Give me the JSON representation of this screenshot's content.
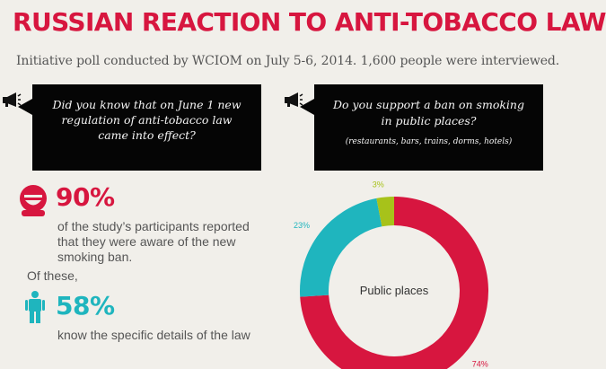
{
  "header": {
    "title": "RUSSIAN REACTION TO ANTI-TOBACCO LAW",
    "subtitle": "Initiative poll conducted by WCIOM on July 5-6, 2014. 1,600 people were interviewed."
  },
  "left_panel": {
    "question": "Did you know that on June 1 new regulation of anti-tobacco law came into effect?",
    "stat1": {
      "value": "90%",
      "text": "of the study’s participants reported that they were aware of the new smoking ban."
    },
    "of_these": "Of these,",
    "stat2": {
      "value": "58%",
      "text": "know the specific details of the law"
    }
  },
  "right_panel": {
    "question": "Do you support a ban on smoking in public places?",
    "note": "(restaurants, bars, trains, dorms, hotels)"
  },
  "colors": {
    "accent_red": "#d7163f",
    "accent_teal": "#1fb5be",
    "accent_green": "#a7c21a",
    "background": "#f1efea",
    "box": "#050505"
  },
  "icons": [
    "megaphone-icon",
    "face-icon",
    "person-icon"
  ],
  "chart_data": {
    "type": "pie",
    "center_label": "Public places",
    "slices": [
      {
        "value": 74,
        "label": "74%",
        "color": "#d7163f"
      },
      {
        "value": 23,
        "label": "23%",
        "color": "#1fb5be"
      },
      {
        "value": 3,
        "label": "3%",
        "color": "#a7c21a"
      }
    ]
  }
}
